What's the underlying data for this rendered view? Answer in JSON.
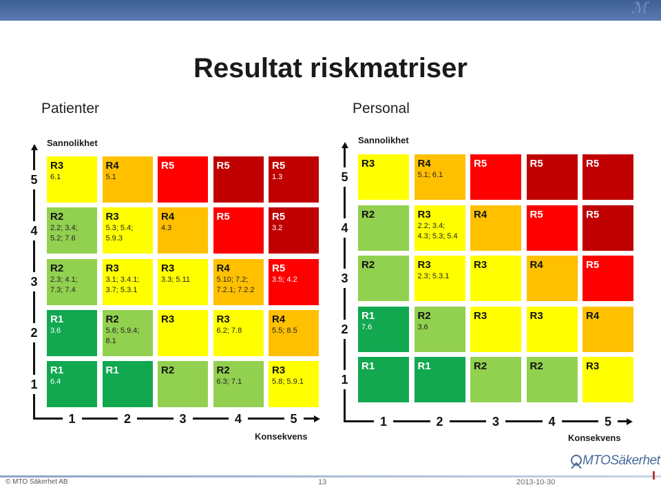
{
  "slide": {
    "title": "Resultat riskmatriser",
    "footer_copyright": "© MTO Säkerhet AB",
    "page_number": "13",
    "date": "2013-10-30",
    "logo_text": "MTOSäkerhet"
  },
  "colors": {
    "green_dark": "#11a850",
    "green_light": "#92d050",
    "yellow": "#ffff00",
    "orange": "#ffc000",
    "red": "#ff0000",
    "dark_red": "#c00000"
  },
  "panels": [
    {
      "heading": "Patienter",
      "y_axis_title": "Sannolikhet",
      "x_axis_title": "Konsekvens",
      "y_ticks": [
        "5",
        "4",
        "3",
        "2",
        "1"
      ],
      "x_ticks": [
        "1",
        "2",
        "3",
        "4",
        "5"
      ],
      "rows": [
        [
          {
            "label": "R3",
            "text": "6.1",
            "color": "#ffff00"
          },
          {
            "label": "R4",
            "text": "5.1",
            "color": "#ffc000"
          },
          {
            "label": "R5",
            "text": "",
            "color": "#ff0000"
          },
          {
            "label": "R5",
            "text": "",
            "color": "#c00000"
          },
          {
            "label": "R5",
            "text": "1.3",
            "color": "#c00000"
          }
        ],
        [
          {
            "label": "R2",
            "text": "2.2; 3.4;\n5.2; 7.6",
            "color": "#92d050"
          },
          {
            "label": "R3",
            "text": "5.3; 5.4;\n5.9.3",
            "color": "#ffff00"
          },
          {
            "label": "R4",
            "text": "4.3",
            "color": "#ffc000"
          },
          {
            "label": "R5",
            "text": "",
            "color": "#ff0000"
          },
          {
            "label": "R5",
            "text": "3.2",
            "color": "#c00000"
          }
        ],
        [
          {
            "label": "R2",
            "text": "2.3; 4.1;\n7.3; 7.4",
            "color": "#92d050"
          },
          {
            "label": "R3",
            "text": "3.1; 3.4.1;\n3.7; 5.3.1",
            "color": "#ffff00"
          },
          {
            "label": "R3",
            "text": "3.3; 5.11",
            "color": "#ffff00"
          },
          {
            "label": "R4",
            "text": "5.10; 7.2;\n7.2.1; 7.2.2",
            "color": "#ffc000"
          },
          {
            "label": "R5",
            "text": "3.5; 4.2",
            "color": "#ff0000"
          }
        ],
        [
          {
            "label": "R1",
            "text": "3.6",
            "color": "#11a850"
          },
          {
            "label": "R2",
            "text": "5.6; 5.9.4;\n8.1",
            "color": "#92d050"
          },
          {
            "label": "R3",
            "text": "",
            "color": "#ffff00"
          },
          {
            "label": "R3",
            "text": "6.2; 7.8",
            "color": "#ffff00"
          },
          {
            "label": "R4",
            "text": "5.5; 8.5",
            "color": "#ffc000"
          }
        ],
        [
          {
            "label": "R1",
            "text": "6.4",
            "color": "#11a850"
          },
          {
            "label": "R1",
            "text": "",
            "color": "#11a850"
          },
          {
            "label": "R2",
            "text": "",
            "color": "#92d050"
          },
          {
            "label": "R2",
            "text": "6.3; 7.1",
            "color": "#92d050"
          },
          {
            "label": "R3",
            "text": "5.8; 5.9.1",
            "color": "#ffff00"
          }
        ]
      ]
    },
    {
      "heading": "Personal",
      "y_axis_title": "Sannolikhet",
      "x_axis_title": "Konsekvens",
      "y_ticks": [
        "5",
        "4",
        "3",
        "2",
        "1"
      ],
      "x_ticks": [
        "1",
        "2",
        "3",
        "4",
        "5"
      ],
      "rows": [
        [
          {
            "label": "R3",
            "text": "",
            "color": "#ffff00"
          },
          {
            "label": "R4",
            "text": "5.1; 6.1",
            "color": "#ffc000"
          },
          {
            "label": "R5",
            "text": "",
            "color": "#ff0000"
          },
          {
            "label": "R5",
            "text": "",
            "color": "#c00000"
          },
          {
            "label": "R5",
            "text": "",
            "color": "#c00000"
          }
        ],
        [
          {
            "label": "R2",
            "text": "",
            "color": "#92d050"
          },
          {
            "label": "R3",
            "text": "2.2; 3.4;\n4.3; 5.3; 5.4",
            "color": "#ffff00"
          },
          {
            "label": "R4",
            "text": "",
            "color": "#ffc000"
          },
          {
            "label": "R5",
            "text": "",
            "color": "#ff0000"
          },
          {
            "label": "R5",
            "text": "",
            "color": "#c00000"
          }
        ],
        [
          {
            "label": "R2",
            "text": "",
            "color": "#92d050"
          },
          {
            "label": "R3",
            "text": "2.3; 5.3.1",
            "color": "#ffff00"
          },
          {
            "label": "R3",
            "text": "",
            "color": "#ffff00"
          },
          {
            "label": "R4",
            "text": "",
            "color": "#ffc000"
          },
          {
            "label": "R5",
            "text": "",
            "color": "#ff0000"
          }
        ],
        [
          {
            "label": "R1",
            "text": "7.6",
            "color": "#11a850"
          },
          {
            "label": "R2",
            "text": "3.6",
            "color": "#92d050"
          },
          {
            "label": "R3",
            "text": "",
            "color": "#ffff00"
          },
          {
            "label": "R3",
            "text": "",
            "color": "#ffff00"
          },
          {
            "label": "R4",
            "text": "",
            "color": "#ffc000"
          }
        ],
        [
          {
            "label": "R1",
            "text": "",
            "color": "#11a850"
          },
          {
            "label": "R1",
            "text": "",
            "color": "#11a850"
          },
          {
            "label": "R2",
            "text": "",
            "color": "#92d050"
          },
          {
            "label": "R2",
            "text": "",
            "color": "#92d050"
          },
          {
            "label": "R3",
            "text": "",
            "color": "#ffff00"
          }
        ]
      ]
    }
  ]
}
